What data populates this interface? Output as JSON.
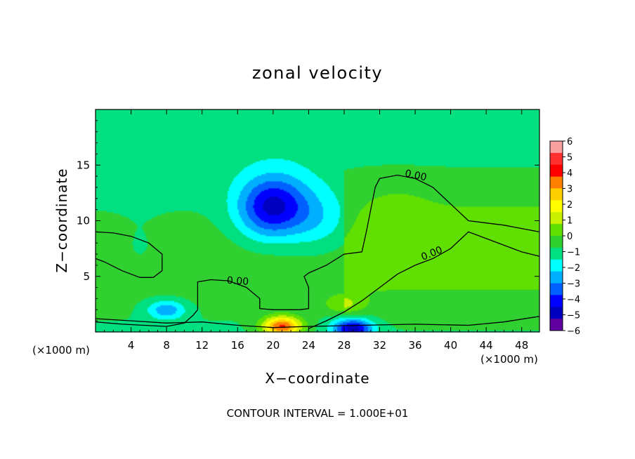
{
  "chart_data": {
    "type": "heatmap",
    "title": "zonal velocity",
    "xlabel": "X−coordinate",
    "ylabel": "Z−coordinate",
    "x_unit_left": "(×1000 m)",
    "x_unit_right": "(×1000 m)",
    "xlim": [
      0,
      50
    ],
    "ylim": [
      0,
      20
    ],
    "x_ticks": [
      4,
      8,
      12,
      16,
      20,
      24,
      28,
      32,
      36,
      40,
      44,
      48
    ],
    "y_ticks": [
      5,
      10,
      15
    ],
    "footer": "CONTOUR INTERVAL = 1.000E+01",
    "contour_label": "0.00",
    "colorbar": {
      "ticks": [
        "6",
        "5",
        "4",
        "3",
        "2",
        "1",
        "0",
        "−1",
        "−2",
        "−3",
        "−4",
        "−5",
        "−6"
      ],
      "colors": [
        "#f9a0a0",
        "#ff3030",
        "#ff0000",
        "#ff8000",
        "#ffd000",
        "#ffff00",
        "#c8f000",
        "#60e000",
        "#30d030",
        "#00e080",
        "#00ffff",
        "#00b0ff",
        "#0060ff",
        "#0000ff",
        "#0000c0",
        "#6000a0"
      ],
      "range": [
        -6,
        6
      ]
    },
    "field_features": [
      {
        "x": 19,
        "z": 11,
        "value": -2.8
      },
      {
        "x": 21,
        "z": 11.5,
        "value": -2.2
      },
      {
        "x": 25,
        "z": 10,
        "value": -1.5
      },
      {
        "x": 34,
        "z": 10.5,
        "value": 0.5
      },
      {
        "x": 28,
        "z": 2.5,
        "value": 1.5
      },
      {
        "x": 8,
        "z": 2,
        "value": -2.5
      },
      {
        "x": 21,
        "z": 0.5,
        "value": 5.5
      },
      {
        "x": 29,
        "z": 0.3,
        "value": -5
      },
      {
        "x": 5,
        "z": 7,
        "value": -0.5
      }
    ],
    "contours": [
      [
        [
          0,
          9.0
        ],
        [
          2,
          8.9
        ],
        [
          4,
          8.6
        ],
        [
          6,
          8.0
        ],
        [
          7.5,
          7.0
        ],
        [
          7.5,
          5.5
        ],
        [
          6.5,
          4.9
        ],
        [
          5,
          4.9
        ],
        [
          3,
          5.5
        ],
        [
          1,
          6.3
        ],
        [
          0,
          6.6
        ]
      ],
      [
        [
          0,
          0.9
        ],
        [
          3,
          0.7
        ],
        [
          8,
          0.5
        ],
        [
          10,
          0.8
        ],
        [
          11,
          1.5
        ],
        [
          11.5,
          2.0
        ],
        [
          11.5,
          4.5
        ],
        [
          13,
          4.7
        ],
        [
          15,
          4.6
        ],
        [
          17,
          4.0
        ],
        [
          18.5,
          3.0
        ],
        [
          18.5,
          2.1
        ],
        [
          20,
          2.0
        ],
        [
          23,
          2.0
        ],
        [
          24,
          2.1
        ],
        [
          24,
          4.0
        ],
        [
          23.5,
          5.0
        ],
        [
          24,
          5.3
        ],
        [
          26,
          6.0
        ],
        [
          28,
          7.0
        ],
        [
          30,
          7.2
        ],
        [
          30.5,
          9.0
        ],
        [
          31,
          11.0
        ],
        [
          31.5,
          13.0
        ],
        [
          32,
          13.8
        ],
        [
          34,
          14.1
        ],
        [
          36,
          13.8
        ],
        [
          38,
          13.0
        ],
        [
          40,
          11.5
        ],
        [
          42,
          10.0
        ],
        [
          44,
          9.8
        ],
        [
          46,
          9.6
        ],
        [
          48,
          9.3
        ],
        [
          50,
          9.0
        ]
      ],
      [
        [
          24,
          0.3
        ],
        [
          26,
          1.0
        ],
        [
          28,
          1.8
        ],
        [
          30,
          2.8
        ],
        [
          32,
          4.0
        ],
        [
          34,
          5.2
        ],
        [
          36,
          6.0
        ],
        [
          38,
          6.6
        ],
        [
          40,
          7.5
        ],
        [
          42,
          9.0
        ],
        [
          44,
          8.4
        ],
        [
          46,
          7.8
        ],
        [
          48,
          7.2
        ],
        [
          50,
          6.8
        ]
      ],
      [
        [
          0,
          1.2
        ],
        [
          4,
          1.0
        ],
        [
          8,
          0.8
        ],
        [
          12,
          0.9
        ],
        [
          16,
          0.6
        ],
        [
          20,
          0.4
        ],
        [
          24,
          0.5
        ],
        [
          30,
          0.6
        ],
        [
          36,
          0.7
        ],
        [
          42,
          0.6
        ],
        [
          46,
          0.9
        ],
        [
          50,
          1.4
        ]
      ]
    ]
  }
}
